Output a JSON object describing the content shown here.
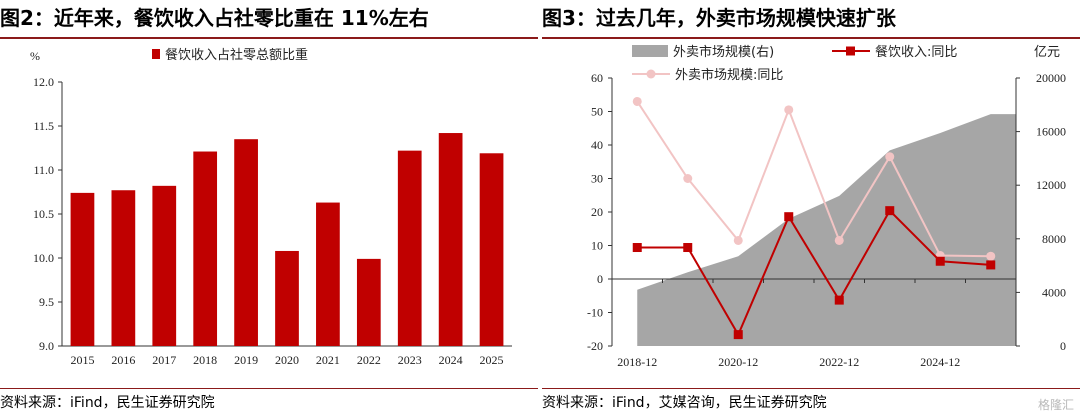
{
  "left_panel": {
    "title": "图2：近年来，餐饮收入占社零比重在 11%左右",
    "source": "资料来源：iFind，民生证券研究院"
  },
  "right_panel": {
    "title": "图3：过去几年，外卖市场规模快速扩张",
    "source": "资料来源：iFind，艾媒咨询，民生证券研究院"
  },
  "watermark": "格隆汇",
  "chart_data": [
    {
      "type": "bar",
      "title": "",
      "ylabel": "%",
      "xlabel": "",
      "categories": [
        "2015",
        "2016",
        "2017",
        "2018",
        "2019",
        "2020",
        "2021",
        "2022",
        "2023",
        "2024",
        "2025"
      ],
      "series": [
        {
          "name": "餐饮收入占社零总额比重",
          "values": [
            10.74,
            10.77,
            10.82,
            11.21,
            11.35,
            10.08,
            10.63,
            9.99,
            11.22,
            11.42,
            11.19
          ]
        }
      ],
      "yticks": [
        "9.0",
        "9.5",
        "10.0",
        "10.5",
        "11.0",
        "11.5",
        "12.0"
      ],
      "ylim": [
        9.0,
        12.0
      ],
      "legend": "top",
      "grid": false,
      "colors": {
        "bar": "#c00000"
      }
    },
    {
      "type": "line",
      "title": "",
      "xlabel": "",
      "ylabel_left": "",
      "ylabel_right": "亿元",
      "x_ticklabels": [
        "2018-12",
        "2020-12",
        "2022-12",
        "2024-12"
      ],
      "x_points": [
        "2018-12",
        "2019-12",
        "2020-12",
        "2021-12",
        "2022-12",
        "2023-12",
        "2024-12",
        "2025-12"
      ],
      "series": [
        {
          "name": "外卖市场规模(右)",
          "type": "area",
          "axis": "right",
          "color": "#a6a6a6",
          "values": [
            4200,
            5500,
            6700,
            9500,
            11200,
            14600,
            15900,
            17300
          ]
        },
        {
          "name": "餐饮收入:同比",
          "type": "line",
          "axis": "left",
          "color": "#c00000",
          "values": [
            9.4,
            9.4,
            -16.6,
            18.6,
            -6.3,
            20.4,
            5.3,
            4.2
          ]
        },
        {
          "name": "外卖市场规模:同比",
          "type": "line",
          "axis": "left",
          "color": "#f2c4c4",
          "values": [
            53.0,
            30.0,
            11.5,
            50.5,
            11.5,
            36.5,
            7.0,
            6.8
          ]
        }
      ],
      "yticks_left": [
        "-20",
        "-10",
        "0",
        "10",
        "20",
        "30",
        "40",
        "50",
        "60"
      ],
      "yticks_right": [
        "0",
        "4000",
        "8000",
        "12000",
        "16000",
        "20000"
      ],
      "ylim_left": [
        -20,
        60
      ],
      "ylim_right": [
        0,
        20000
      ],
      "legend": "top",
      "grid": false
    }
  ]
}
